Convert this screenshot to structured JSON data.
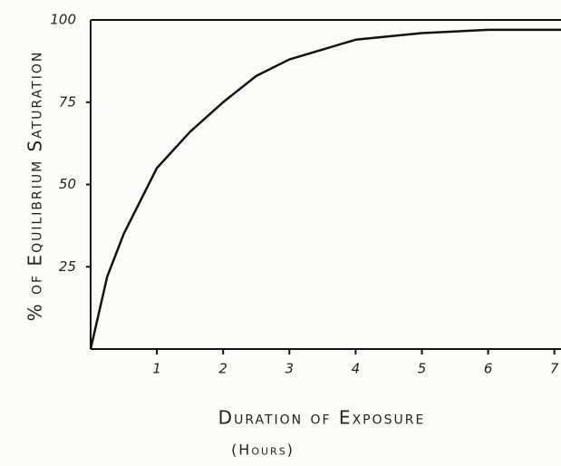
{
  "chart_data": {
    "type": "line",
    "ylabel": "% of Equilibrium Saturation",
    "xlabel": "Duration of Exposure",
    "xlabel_unit": "(Hours)",
    "x": [
      0,
      0.25,
      0.5,
      1,
      1.5,
      2,
      2.5,
      3,
      3.5,
      4,
      5,
      6,
      7.1
    ],
    "series": [
      {
        "name": "Saturation",
        "color": "#111111",
        "values": [
          0,
          22,
          35,
          55,
          66,
          75,
          83,
          88,
          91,
          94,
          96,
          97,
          97
        ]
      }
    ],
    "xlim": [
      0,
      7.1
    ],
    "xticks": [
      1,
      2,
      3,
      4,
      5,
      6,
      7
    ],
    "ylim": [
      0,
      100
    ],
    "yticks": [
      25,
      50,
      75,
      100
    ]
  }
}
